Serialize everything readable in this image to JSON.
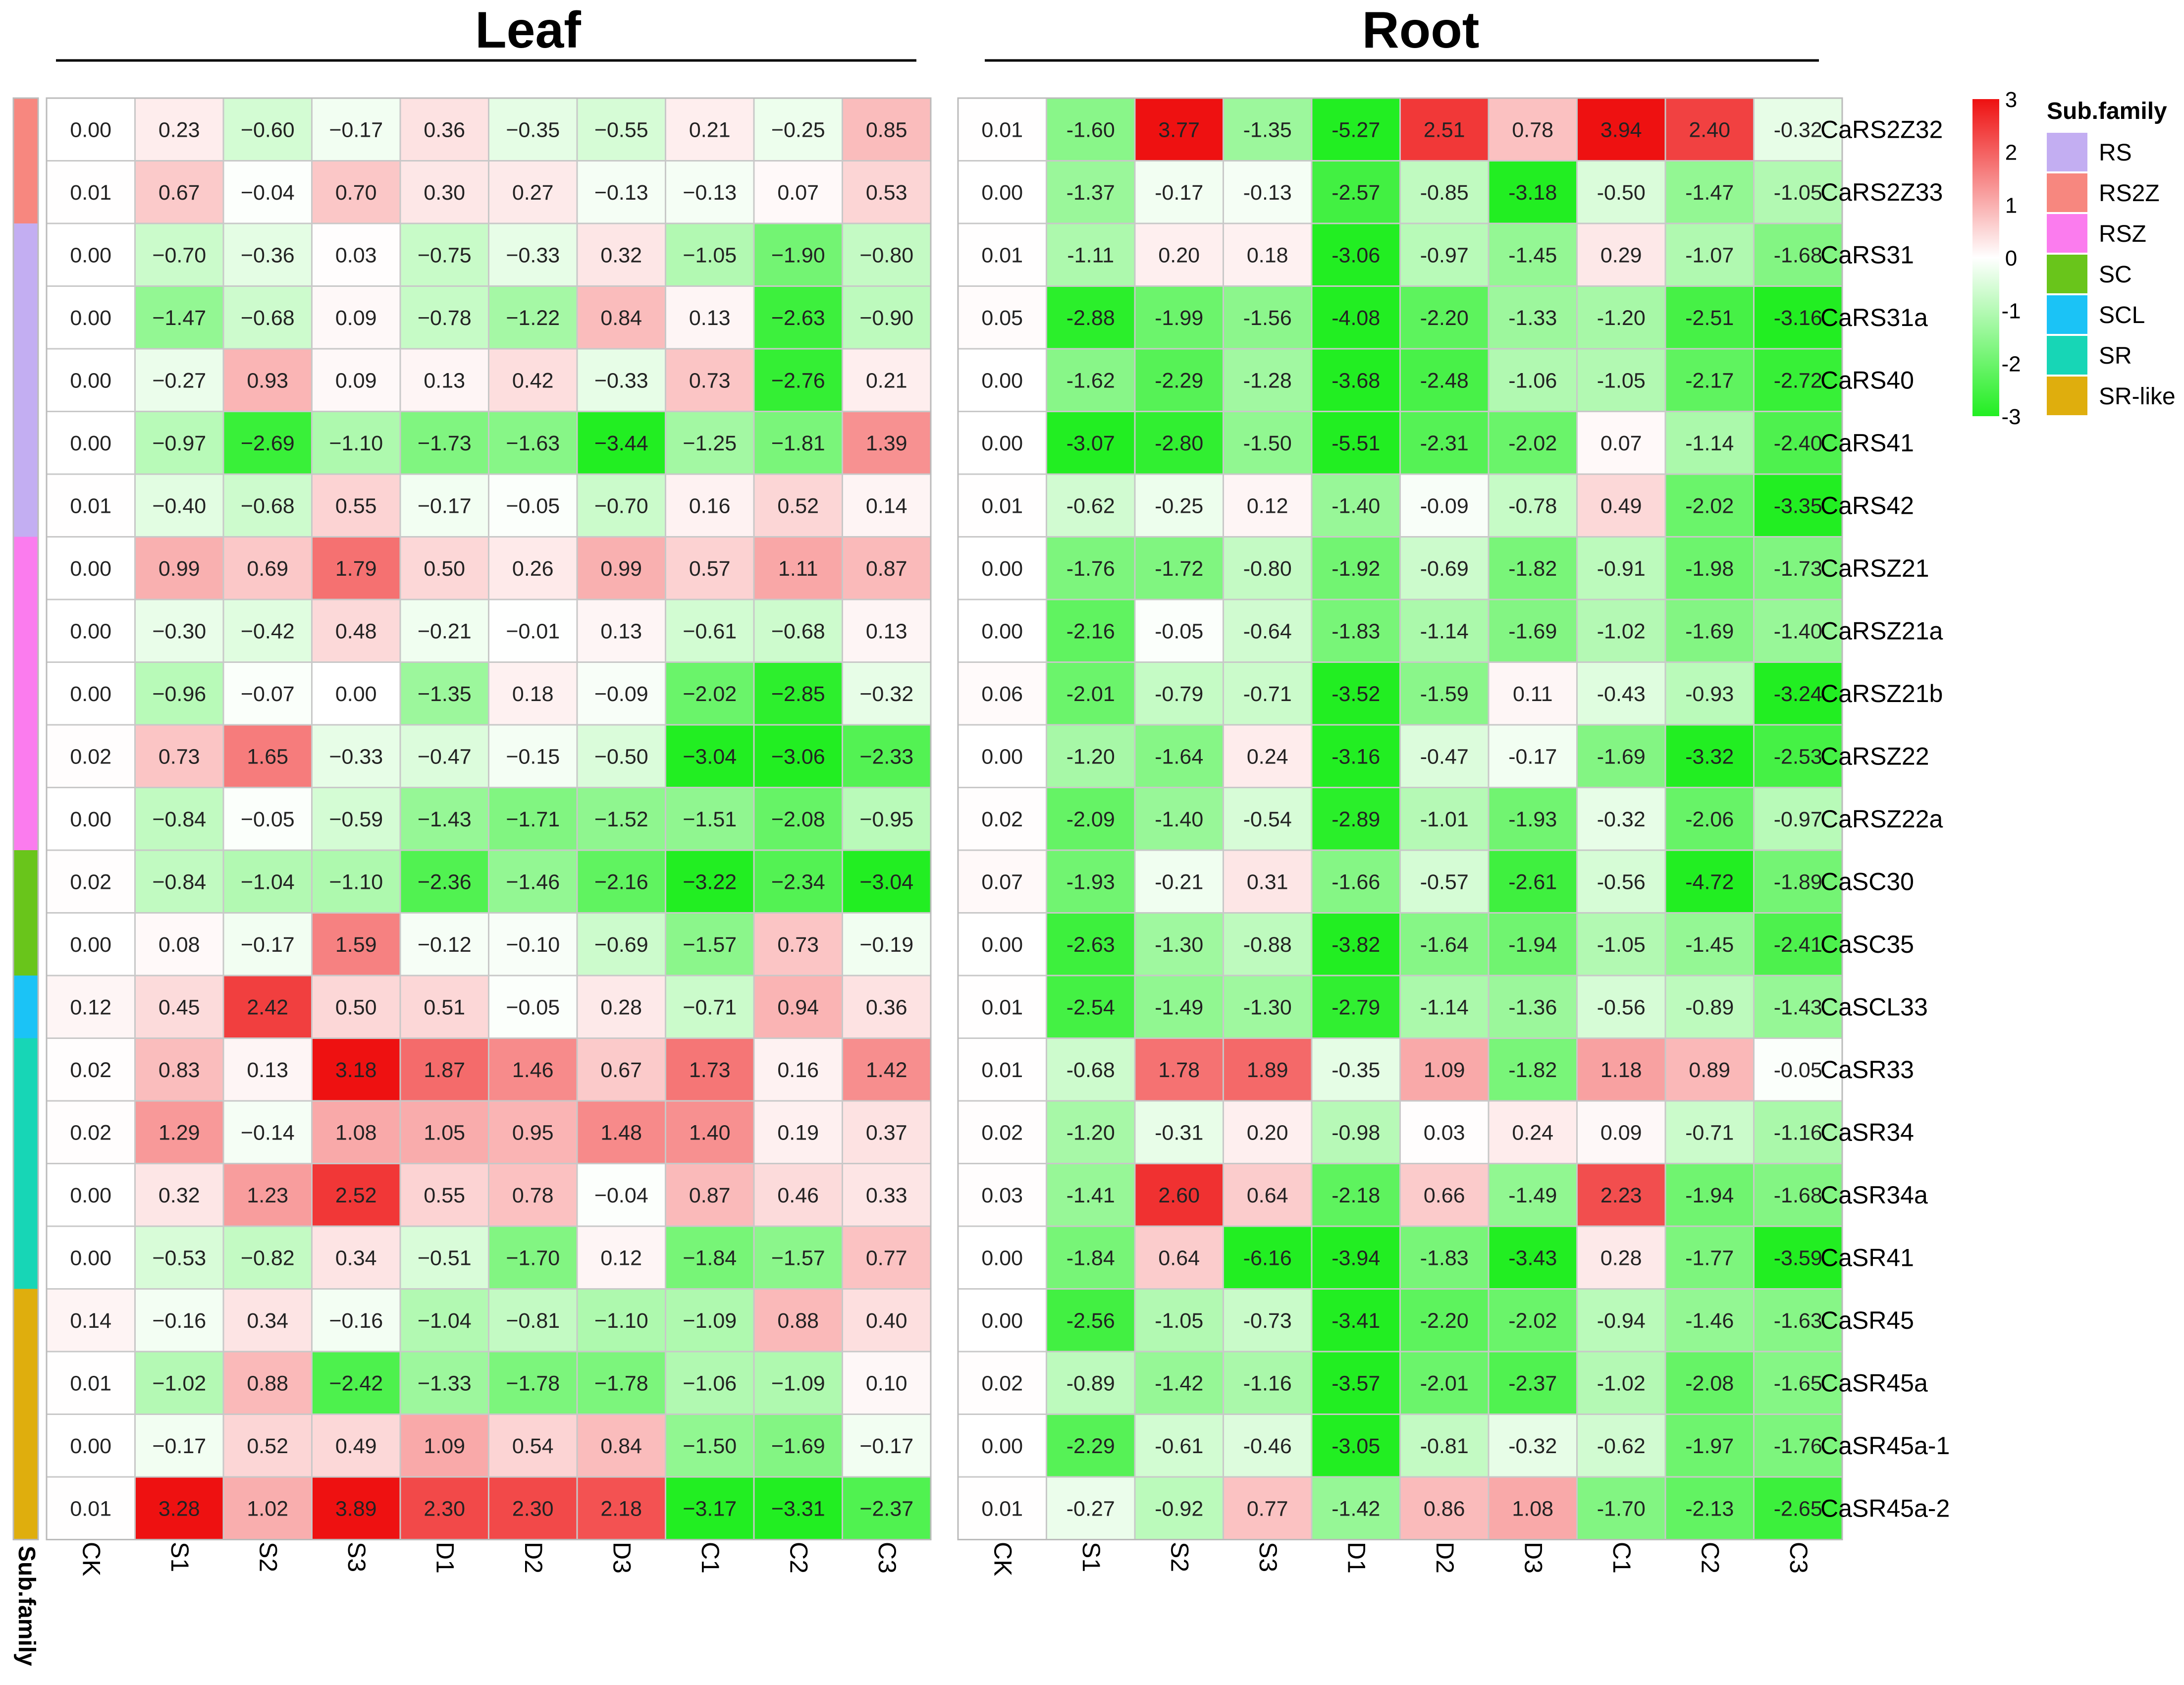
{
  "chart_data": {
    "type": "heatmap",
    "panels": [
      {
        "title": "Leaf",
        "columns": [
          "CK",
          "S1",
          "S2",
          "S3",
          "D1",
          "D2",
          "D3",
          "C1",
          "C2",
          "C3"
        ],
        "values": [
          [
            "0.00",
            "0.23",
            "−0.60",
            "−0.17",
            "0.36",
            "−0.35",
            "−0.55",
            "0.21",
            "−0.25",
            "0.85"
          ],
          [
            "0.01",
            "0.67",
            "−0.04",
            "0.70",
            "0.30",
            "0.27",
            "−0.13",
            "−0.13",
            "0.07",
            "0.53"
          ],
          [
            "0.00",
            "−0.70",
            "−0.36",
            "0.03",
            "−0.75",
            "−0.33",
            "0.32",
            "−1.05",
            "−1.90",
            "−0.80"
          ],
          [
            "0.00",
            "−1.47",
            "−0.68",
            "0.09",
            "−0.78",
            "−1.22",
            "0.84",
            "0.13",
            "−2.63",
            "−0.90"
          ],
          [
            "0.00",
            "−0.27",
            "0.93",
            "0.09",
            "0.13",
            "0.42",
            "−0.33",
            "0.73",
            "−2.76",
            "0.21"
          ],
          [
            "0.00",
            "−0.97",
            "−2.69",
            "−1.10",
            "−1.73",
            "−1.63",
            "−3.44",
            "−1.25",
            "−1.81",
            "1.39"
          ],
          [
            "0.01",
            "−0.40",
            "−0.68",
            "0.55",
            "−0.17",
            "−0.05",
            "−0.70",
            "0.16",
            "0.52",
            "0.14"
          ],
          [
            "0.00",
            "0.99",
            "0.69",
            "1.79",
            "0.50",
            "0.26",
            "0.99",
            "0.57",
            "1.11",
            "0.87"
          ],
          [
            "0.00",
            "−0.30",
            "−0.42",
            "0.48",
            "−0.21",
            "−0.01",
            "0.13",
            "−0.61",
            "−0.68",
            "0.13"
          ],
          [
            "0.00",
            "−0.96",
            "−0.07",
            "0.00",
            "−1.35",
            "0.18",
            "−0.09",
            "−2.02",
            "−2.85",
            "−0.32"
          ],
          [
            "0.02",
            "0.73",
            "1.65",
            "−0.33",
            "−0.47",
            "−0.15",
            "−0.50",
            "−3.04",
            "−3.06",
            "−2.33"
          ],
          [
            "0.00",
            "−0.84",
            "−0.05",
            "−0.59",
            "−1.43",
            "−1.71",
            "−1.52",
            "−1.51",
            "−2.08",
            "−0.95"
          ],
          [
            "0.02",
            "−0.84",
            "−1.04",
            "−1.10",
            "−2.36",
            "−1.46",
            "−2.16",
            "−3.22",
            "−2.34",
            "−3.04"
          ],
          [
            "0.00",
            "0.08",
            "−0.17",
            "1.59",
            "−0.12",
            "−0.10",
            "−0.69",
            "−1.57",
            "0.73",
            "−0.19"
          ],
          [
            "0.12",
            "0.45",
            "2.42",
            "0.50",
            "0.51",
            "−0.05",
            "0.28",
            "−0.71",
            "0.94",
            "0.36"
          ],
          [
            "0.02",
            "0.83",
            "0.13",
            "3.18",
            "1.87",
            "1.46",
            "0.67",
            "1.73",
            "0.16",
            "1.42"
          ],
          [
            "0.02",
            "1.29",
            "−0.14",
            "1.08",
            "1.05",
            "0.95",
            "1.48",
            "1.40",
            "0.19",
            "0.37"
          ],
          [
            "0.00",
            "0.32",
            "1.23",
            "2.52",
            "0.55",
            "0.78",
            "−0.04",
            "0.87",
            "0.46",
            "0.33"
          ],
          [
            "0.00",
            "−0.53",
            "−0.82",
            "0.34",
            "−0.51",
            "−1.70",
            "0.12",
            "−1.84",
            "−1.57",
            "0.77"
          ],
          [
            "0.14",
            "−0.16",
            "0.34",
            "−0.16",
            "−1.04",
            "−0.81",
            "−1.10",
            "−1.09",
            "0.88",
            "0.40"
          ],
          [
            "0.01",
            "−1.02",
            "0.88",
            "−2.42",
            "−1.33",
            "−1.78",
            "−1.78",
            "−1.06",
            "−1.09",
            "0.10"
          ],
          [
            "0.00",
            "−0.17",
            "0.52",
            "0.49",
            "1.09",
            "0.54",
            "0.84",
            "−1.50",
            "−1.69",
            "−0.17"
          ],
          [
            "0.01",
            "3.28",
            "1.02",
            "3.89",
            "2.30",
            "2.30",
            "2.18",
            "−3.17",
            "−3.31",
            "−2.37"
          ]
        ]
      },
      {
        "title": "Root",
        "columns": [
          "CK",
          "S1",
          "S2",
          "S3",
          "D1",
          "D2",
          "D3",
          "C1",
          "C2",
          "C3"
        ],
        "values": [
          [
            "0.01",
            "-1.60",
            "3.77",
            "-1.35",
            "-5.27",
            "2.51",
            "0.78",
            "3.94",
            "2.40",
            "-0.32"
          ],
          [
            "0.00",
            "-1.37",
            "-0.17",
            "-0.13",
            "-2.57",
            "-0.85",
            "-3.18",
            "-0.50",
            "-1.47",
            "-1.05"
          ],
          [
            "0.01",
            "-1.11",
            "0.20",
            "0.18",
            "-3.06",
            "-0.97",
            "-1.45",
            "0.29",
            "-1.07",
            "-1.68"
          ],
          [
            "0.05",
            "-2.88",
            "-1.99",
            "-1.56",
            "-4.08",
            "-2.20",
            "-1.33",
            "-1.20",
            "-2.51",
            "-3.16"
          ],
          [
            "0.00",
            "-1.62",
            "-2.29",
            "-1.28",
            "-3.68",
            "-2.48",
            "-1.06",
            "-1.05",
            "-2.17",
            "-2.72"
          ],
          [
            "0.00",
            "-3.07",
            "-2.80",
            "-1.50",
            "-5.51",
            "-2.31",
            "-2.02",
            "0.07",
            "-1.14",
            "-2.40"
          ],
          [
            "0.01",
            "-0.62",
            "-0.25",
            "0.12",
            "-1.40",
            "-0.09",
            "-0.78",
            "0.49",
            "-2.02",
            "-3.35"
          ],
          [
            "0.00",
            "-1.76",
            "-1.72",
            "-0.80",
            "-1.92",
            "-0.69",
            "-1.82",
            "-0.91",
            "-1.98",
            "-1.73"
          ],
          [
            "0.00",
            "-2.16",
            "-0.05",
            "-0.64",
            "-1.83",
            "-1.14",
            "-1.69",
            "-1.02",
            "-1.69",
            "-1.40"
          ],
          [
            "0.06",
            "-2.01",
            "-0.79",
            "-0.71",
            "-3.52",
            "-1.59",
            "0.11",
            "-0.43",
            "-0.93",
            "-3.24"
          ],
          [
            "0.00",
            "-1.20",
            "-1.64",
            "0.24",
            "-3.16",
            "-0.47",
            "-0.17",
            "-1.69",
            "-3.32",
            "-2.53"
          ],
          [
            "0.02",
            "-2.09",
            "-1.40",
            "-0.54",
            "-2.89",
            "-1.01",
            "-1.93",
            "-0.32",
            "-2.06",
            "-0.97"
          ],
          [
            "0.07",
            "-1.93",
            "-0.21",
            "0.31",
            "-1.66",
            "-0.57",
            "-2.61",
            "-0.56",
            "-4.72",
            "-1.89"
          ],
          [
            "0.00",
            "-2.63",
            "-1.30",
            "-0.88",
            "-3.82",
            "-1.64",
            "-1.94",
            "-1.05",
            "-1.45",
            "-2.41"
          ],
          [
            "0.01",
            "-2.54",
            "-1.49",
            "-1.30",
            "-2.79",
            "-1.14",
            "-1.36",
            "-0.56",
            "-0.89",
            "-1.43"
          ],
          [
            "0.01",
            "-0.68",
            "1.78",
            "1.89",
            "-0.35",
            "1.09",
            "-1.82",
            "1.18",
            "0.89",
            "-0.05"
          ],
          [
            "0.02",
            "-1.20",
            "-0.31",
            "0.20",
            "-0.98",
            "0.03",
            "0.24",
            "0.09",
            "-0.71",
            "-1.16"
          ],
          [
            "0.03",
            "-1.41",
            "2.60",
            "0.64",
            "-2.18",
            "0.66",
            "-1.49",
            "2.23",
            "-1.94",
            "-1.68"
          ],
          [
            "0.00",
            "-1.84",
            "0.64",
            "-6.16",
            "-3.94",
            "-1.83",
            "-3.43",
            "0.28",
            "-1.77",
            "-3.59"
          ],
          [
            "0.00",
            "-2.56",
            "-1.05",
            "-0.73",
            "-3.41",
            "-2.20",
            "-2.02",
            "-0.94",
            "-1.46",
            "-1.63"
          ],
          [
            "0.02",
            "-0.89",
            "-1.42",
            "-1.16",
            "-3.57",
            "-2.01",
            "-2.37",
            "-1.02",
            "-2.08",
            "-1.65"
          ],
          [
            "0.00",
            "-2.29",
            "-0.61",
            "-0.46",
            "-3.05",
            "-0.81",
            "-0.32",
            "-0.62",
            "-1.97",
            "-1.76"
          ],
          [
            "0.01",
            "-0.27",
            "-0.92",
            "0.77",
            "-1.42",
            "0.86",
            "1.08",
            "-1.70",
            "-2.13",
            "-2.65"
          ]
        ]
      }
    ],
    "genes": [
      "CaRS2Z32",
      "CaRS2Z33",
      "CaRS31",
      "CaRS31a",
      "CaRS40",
      "CaRS41",
      "CaRS42",
      "CaRSZ21",
      "CaRSZ21a",
      "CaRSZ21b",
      "CaRSZ22",
      "CaRSZ22a",
      "CaSC30",
      "CaSC35",
      "CaSCL33",
      "CaSR33",
      "CaSR34",
      "CaSR34a",
      "CaSR41",
      "CaSR45",
      "CaSR45a",
      "CaSR45a-1",
      "CaSR45a-2"
    ],
    "row_subfamily": [
      "RS2Z",
      "RS2Z",
      "RS",
      "RS",
      "RS",
      "RS",
      "RS",
      "RSZ",
      "RSZ",
      "RSZ",
      "RSZ",
      "RSZ",
      "SC",
      "SC",
      "SCL",
      "SR",
      "SR",
      "SR",
      "SR",
      "SR-like",
      "SR-like",
      "SR-like",
      "SR-like"
    ],
    "subfamily_axis_label": "Sub.family",
    "color_scale": {
      "range": [
        -3,
        3
      ],
      "ticks": [
        "3",
        "2",
        "1",
        "0",
        "-1",
        "-2",
        "-3"
      ],
      "low_color": "#22ee22",
      "mid_color": "#ffffff",
      "high_color": "#ee1111"
    },
    "legend": {
      "title": "Sub.family",
      "position": "top-right",
      "items": [
        {
          "name": "RS",
          "color": "#c3aef2"
        },
        {
          "name": "RS2Z",
          "color": "#f7877f"
        },
        {
          "name": "RSZ",
          "color": "#fb7cee"
        },
        {
          "name": "SC",
          "color": "#69c51b"
        },
        {
          "name": "SCL",
          "color": "#1bc3f6"
        },
        {
          "name": "SR",
          "color": "#17d6b6"
        },
        {
          "name": "SR-like",
          "color": "#dfae0d"
        }
      ]
    }
  }
}
